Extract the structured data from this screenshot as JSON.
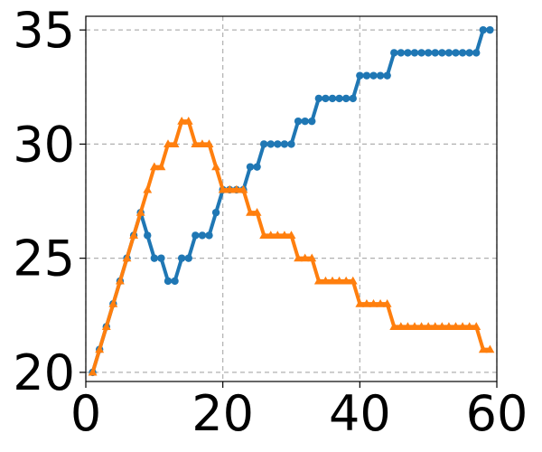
{
  "chart_data": {
    "type": "line",
    "title": "",
    "xlabel": "",
    "ylabel": "",
    "xlim": [
      0,
      60
    ],
    "ylim": [
      19.6,
      35.6
    ],
    "xticks": [
      "0",
      "20",
      "40",
      "60"
    ],
    "yticks": [
      "20",
      "25",
      "30",
      "35"
    ],
    "grid": true,
    "legend": "none",
    "x": [
      1,
      2,
      3,
      4,
      5,
      6,
      7,
      8,
      9,
      10,
      11,
      12,
      13,
      14,
      15,
      16,
      17,
      18,
      19,
      20,
      21,
      22,
      23,
      24,
      25,
      26,
      27,
      28,
      29,
      30,
      31,
      32,
      33,
      34,
      35,
      36,
      37,
      38,
      39,
      40,
      41,
      42,
      43,
      44,
      45,
      46,
      47,
      48,
      49,
      50,
      51,
      52,
      53,
      54,
      55,
      56,
      57,
      58,
      59
    ],
    "series": [
      {
        "color": "#1f77b4",
        "marker": "circle",
        "values": [
          20,
          21,
          22,
          23,
          24,
          25,
          26,
          27,
          26,
          25,
          25,
          24,
          24,
          25,
          25,
          26,
          26,
          26,
          27,
          28,
          28,
          28,
          28,
          29,
          29,
          30,
          30,
          30,
          30,
          30,
          31,
          31,
          31,
          32,
          32,
          32,
          32,
          32,
          32,
          33,
          33,
          33,
          33,
          33,
          34,
          34,
          34,
          34,
          34,
          34,
          34,
          34,
          34,
          34,
          34,
          34,
          34,
          35,
          35
        ]
      },
      {
        "color": "#ff7f0e",
        "marker": "triangle",
        "values": [
          20,
          21,
          22,
          23,
          24,
          25,
          26,
          27,
          28,
          29,
          29,
          30,
          30,
          31,
          31,
          30,
          30,
          30,
          29,
          28,
          28,
          28,
          28,
          27,
          27,
          26,
          26,
          26,
          26,
          26,
          25,
          25,
          25,
          24,
          24,
          24,
          24,
          24,
          24,
          23,
          23,
          23,
          23,
          23,
          22,
          22,
          22,
          22,
          22,
          22,
          22,
          22,
          22,
          22,
          22,
          22,
          22,
          21,
          21
        ]
      }
    ]
  }
}
